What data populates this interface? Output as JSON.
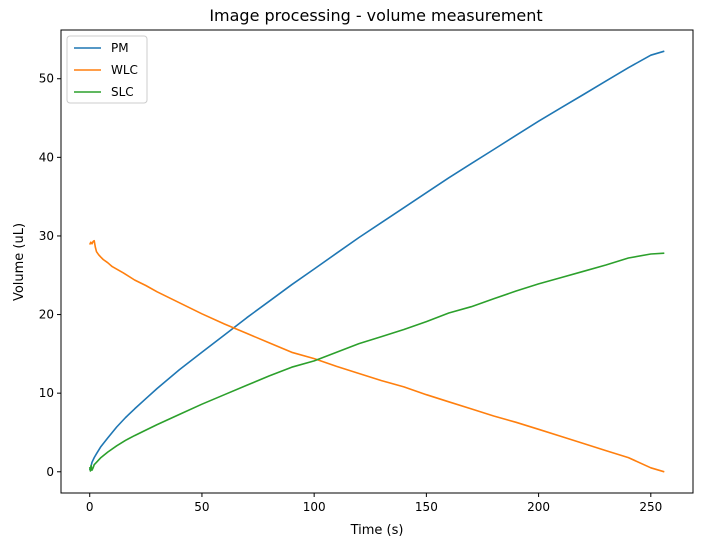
{
  "chart_data": {
    "type": "line",
    "title": "Image processing - volume measurement",
    "xlabel": "Time (s)",
    "ylabel": "Volume (uL)",
    "xlim": [
      -12.8,
      268.8
    ],
    "ylim": [
      -2.7,
      56.2
    ],
    "xticks": [
      0,
      50,
      100,
      150,
      200,
      250
    ],
    "yticks": [
      0,
      10,
      20,
      30,
      40,
      50
    ],
    "grid": false,
    "legend_position": "top-left",
    "series": [
      {
        "name": "PM",
        "color": "#1f77b4",
        "x": [
          0,
          0.5,
          1,
          2,
          3,
          5,
          8,
          12,
          16,
          20,
          25,
          30,
          40,
          50,
          60,
          70,
          80,
          90,
          100,
          110,
          120,
          130,
          140,
          150,
          160,
          170,
          180,
          190,
          200,
          210,
          220,
          230,
          240,
          250,
          256
        ],
        "y": [
          0.2,
          0.6,
          1.2,
          1.8,
          2.3,
          3.2,
          4.3,
          5.7,
          6.9,
          8.0,
          9.3,
          10.6,
          13.0,
          15.2,
          17.4,
          19.6,
          21.7,
          23.8,
          25.8,
          27.8,
          29.8,
          31.7,
          33.6,
          35.5,
          37.4,
          39.2,
          41.0,
          42.8,
          44.6,
          46.3,
          48.0,
          49.7,
          51.4,
          53.0,
          53.5
        ]
      },
      {
        "name": "WLC",
        "color": "#ff7f0e",
        "x": [
          0,
          0.5,
          1,
          1.5,
          2,
          2.5,
          3,
          4,
          5,
          6,
          8,
          10,
          15,
          20,
          25,
          30,
          40,
          50,
          60,
          70,
          80,
          90,
          100,
          110,
          120,
          130,
          140,
          150,
          160,
          170,
          180,
          190,
          200,
          210,
          220,
          230,
          240,
          250,
          256
        ],
        "y": [
          28.9,
          29.2,
          29.0,
          29.3,
          29.4,
          28.6,
          28.0,
          27.6,
          27.3,
          27.0,
          26.6,
          26.1,
          25.3,
          24.4,
          23.7,
          22.9,
          21.5,
          20.1,
          18.8,
          17.6,
          16.4,
          15.2,
          14.4,
          13.4,
          12.5,
          11.6,
          10.8,
          9.8,
          8.9,
          8.0,
          7.1,
          6.3,
          5.4,
          4.5,
          3.6,
          2.7,
          1.8,
          0.5,
          0.0
        ]
      },
      {
        "name": "SLC",
        "color": "#2ca02c",
        "x": [
          0,
          0.3,
          0.6,
          1,
          1.5,
          2,
          3,
          5,
          8,
          12,
          16,
          20,
          25,
          30,
          40,
          50,
          60,
          70,
          80,
          90,
          100,
          110,
          120,
          130,
          140,
          150,
          160,
          170,
          180,
          190,
          200,
          210,
          220,
          230,
          240,
          250,
          256
        ],
        "y": [
          0.6,
          0.1,
          0.8,
          0.2,
          0.5,
          0.9,
          1.2,
          1.8,
          2.5,
          3.3,
          4.0,
          4.6,
          5.3,
          6.0,
          7.3,
          8.6,
          9.8,
          11.0,
          12.2,
          13.3,
          14.1,
          15.2,
          16.3,
          17.2,
          18.1,
          19.1,
          20.2,
          21.0,
          22.0,
          23.0,
          23.9,
          24.7,
          25.5,
          26.3,
          27.2,
          27.7,
          27.8
        ]
      }
    ]
  }
}
